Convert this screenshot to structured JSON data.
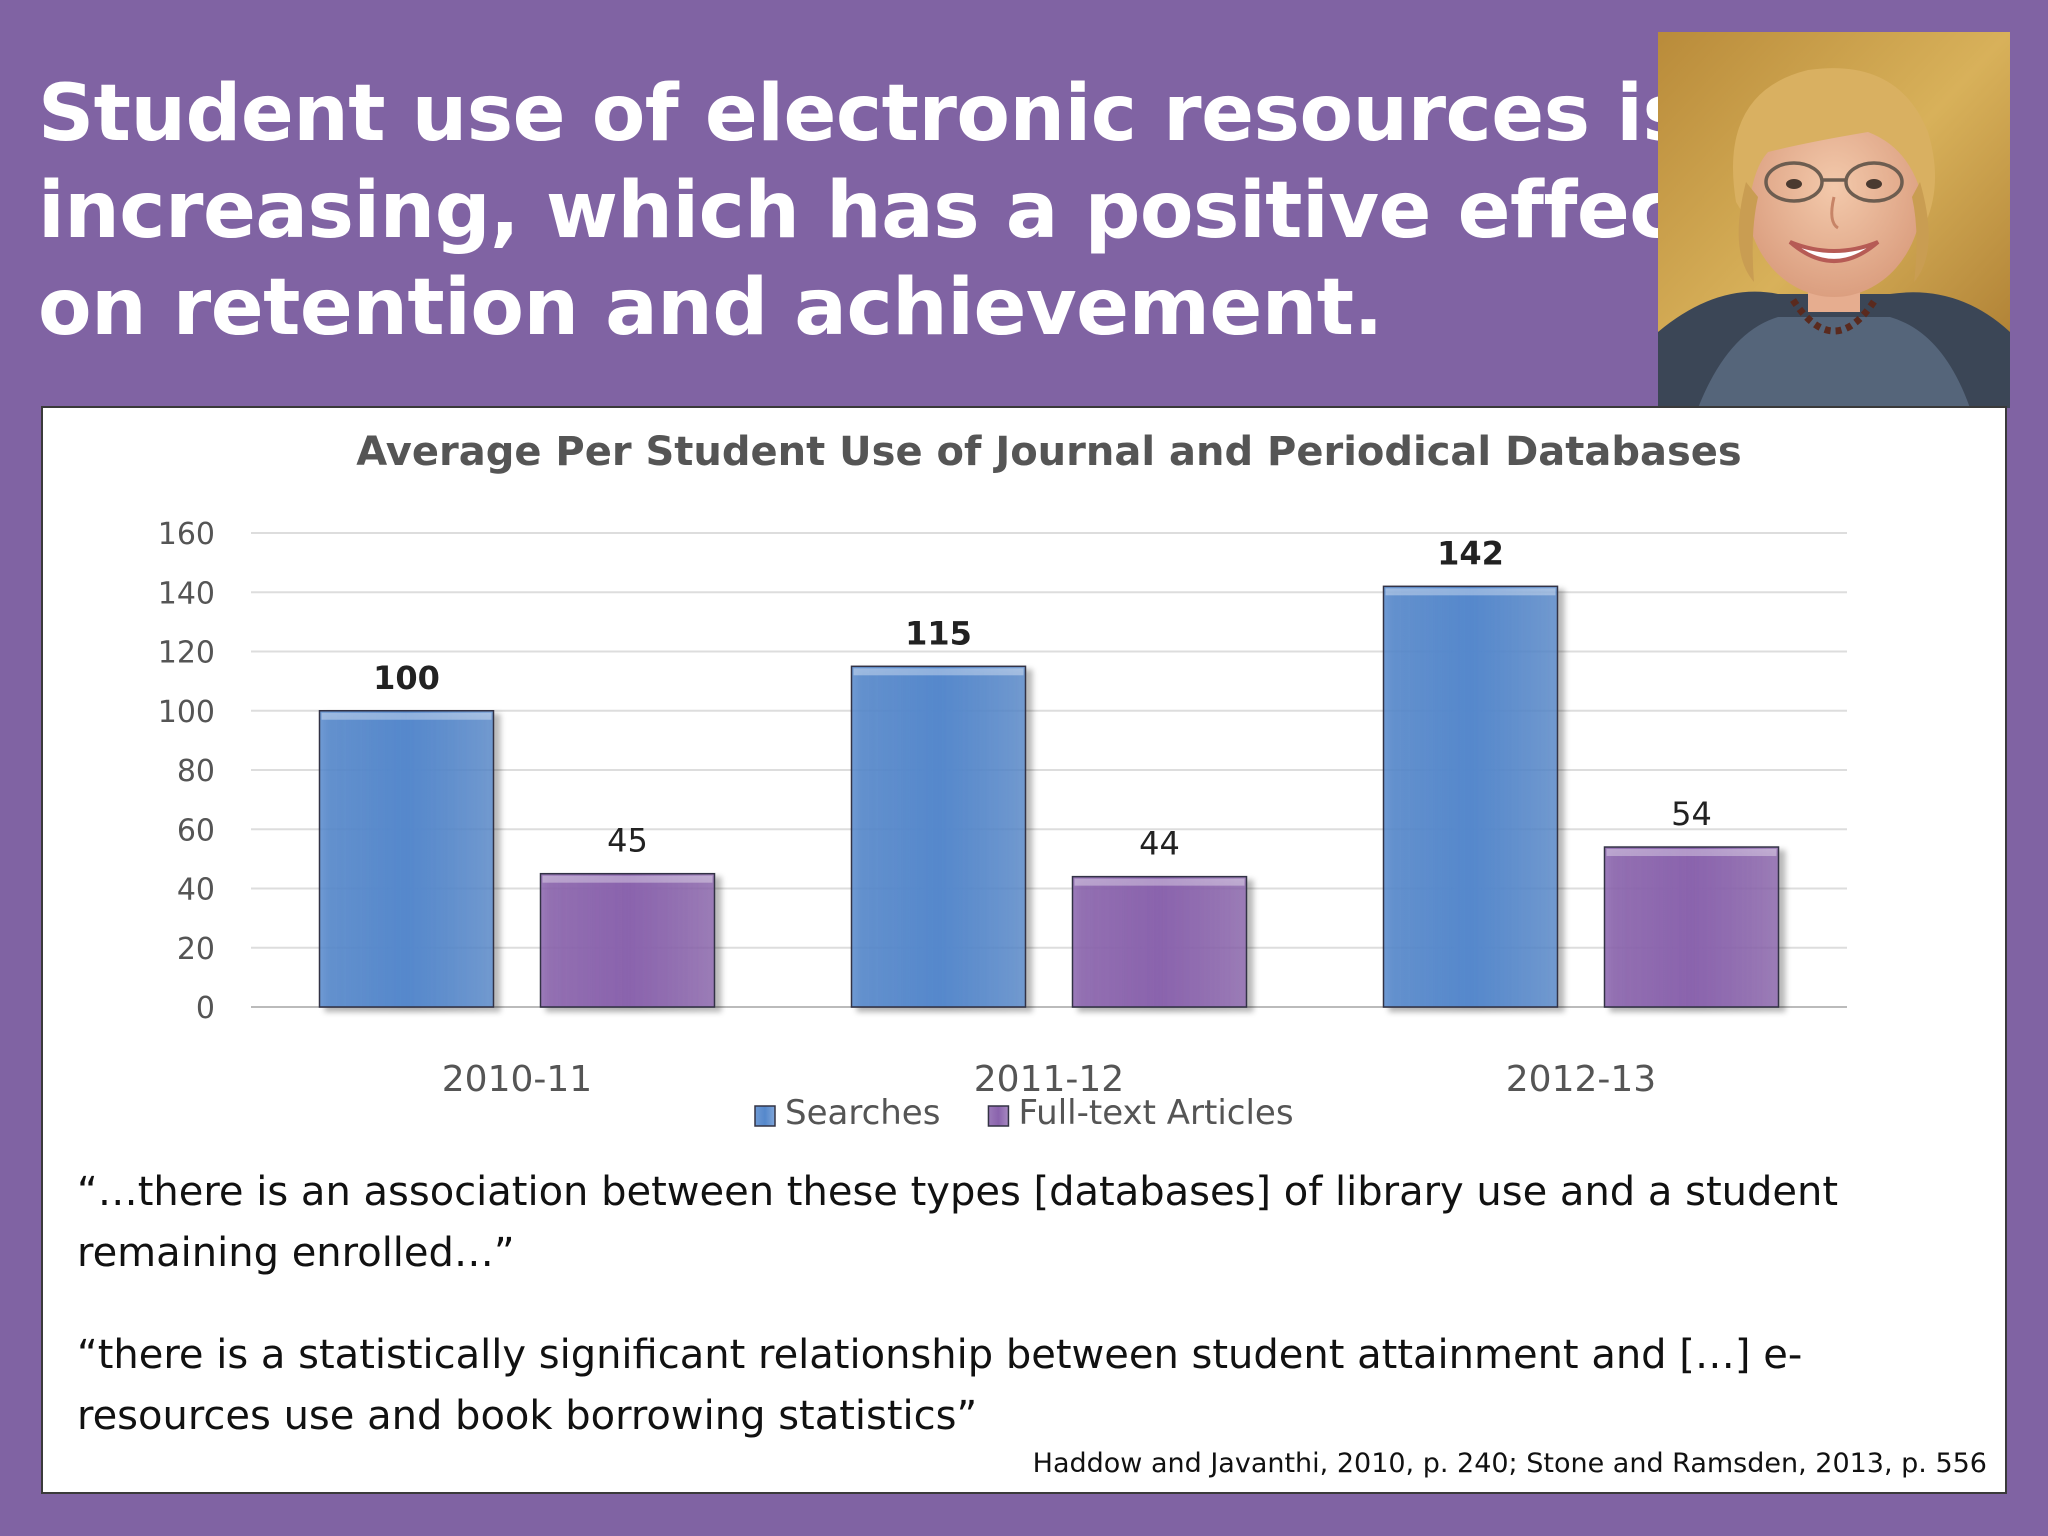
{
  "slide": {
    "title_lines": [
      "Student use of electronic resources is",
      "increasing, which has a positive effect",
      "on retention and achievement."
    ]
  },
  "portrait": {
    "icon": "person-portrait-photo"
  },
  "chart_data": {
    "type": "bar",
    "title": "Average Per Student Use of Journal and Periodical Databases",
    "xlabel": "",
    "ylabel": "",
    "categories": [
      "2010-11",
      "2011-12",
      "2012-13"
    ],
    "series": [
      {
        "name": "Searches",
        "values": [
          100,
          115,
          142
        ],
        "color": "#5588cc",
        "label_bold": true
      },
      {
        "name": "Full-text Articles",
        "values": [
          45,
          44,
          54
        ],
        "color": "#8a63ad",
        "label_bold": false
      }
    ],
    "ylim": [
      0,
      160
    ],
    "yticks": [
      "0",
      "20",
      "40",
      "60",
      "80",
      "100",
      "120",
      "140",
      "160"
    ],
    "grid": true,
    "legend": "bottom"
  },
  "quotes": [
    {
      "lines": [
        "“…there is an association between these types [databases] of library use and a student",
        "remaining enrolled…”"
      ]
    },
    {
      "lines": [
        "“there is a statistically significant relationship between student attainment and […] e-",
        "resources use and book borrowing statistics”"
      ]
    }
  ],
  "citation": "Haddow and Javanthi, 2010, p. 240; Stone and Ramsden, 2013, p. 556"
}
